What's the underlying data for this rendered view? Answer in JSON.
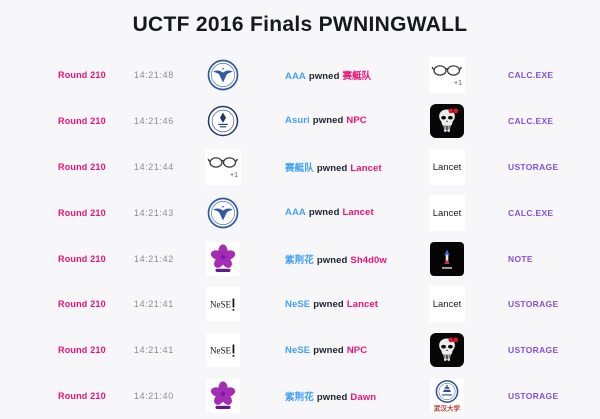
{
  "title": "UCTF 2016 Finals PWNINGWALL",
  "verb": "pwned",
  "colors": {
    "background": "#f7f7fa",
    "title": "#17181d",
    "round": "#ee1176",
    "time": "#8c8c93",
    "attacker": "#41a1f6",
    "pwned": "#20242e",
    "victim": "#ee1176",
    "challenge": "#8350dc"
  },
  "rows": [
    {
      "round": "Round 210",
      "time": "14:21:48",
      "attacker": "AAA",
      "victim": "赛艇队",
      "challenge": "CALC.EXE",
      "attacker_logo": "nuaa-eagle-seal",
      "victim_logo": "glasses-plus-one"
    },
    {
      "round": "Round 210",
      "time": "14:21:46",
      "attacker": "Asuri",
      "victim": "NPC",
      "challenge": "CALC.EXE",
      "attacker_logo": "bit-seal",
      "victim_logo": "punisher-skull-bow"
    },
    {
      "round": "Round 210",
      "time": "14:21:44",
      "attacker": "赛艇队",
      "victim": "Lancet",
      "challenge": "USTORAGE",
      "attacker_logo": "glasses-plus-one",
      "victim_logo": "lancet-wordmark"
    },
    {
      "round": "Round 210",
      "time": "14:21:43",
      "attacker": "AAA",
      "victim": "Lancet",
      "challenge": "CALC.EXE",
      "attacker_logo": "nuaa-eagle-seal",
      "victim_logo": "lancet-wordmark"
    },
    {
      "round": "Round 210",
      "time": "14:21:42",
      "attacker": "紫荆花",
      "victim": "Sh4d0w",
      "challenge": "NOTE",
      "attacker_logo": "bauhinia-flower",
      "victim_logo": "sh4d0w-figure"
    },
    {
      "round": "Round 210",
      "time": "14:21:41",
      "attacker": "NeSE",
      "victim": "Lancet",
      "challenge": "USTORAGE",
      "attacker_logo": "nese-wordmark",
      "victim_logo": "lancet-wordmark"
    },
    {
      "round": "Round 210",
      "time": "14:21:41",
      "attacker": "NeSE",
      "victim": "NPC",
      "challenge": "USTORAGE",
      "attacker_logo": "nese-wordmark",
      "victim_logo": "punisher-skull-bow"
    },
    {
      "round": "Round 210",
      "time": "14:21:40",
      "attacker": "紫荆花",
      "victim": "Dawn",
      "challenge": "USTORAGE",
      "attacker_logo": "bauhinia-flower",
      "victim_logo": "whu-seal"
    }
  ]
}
